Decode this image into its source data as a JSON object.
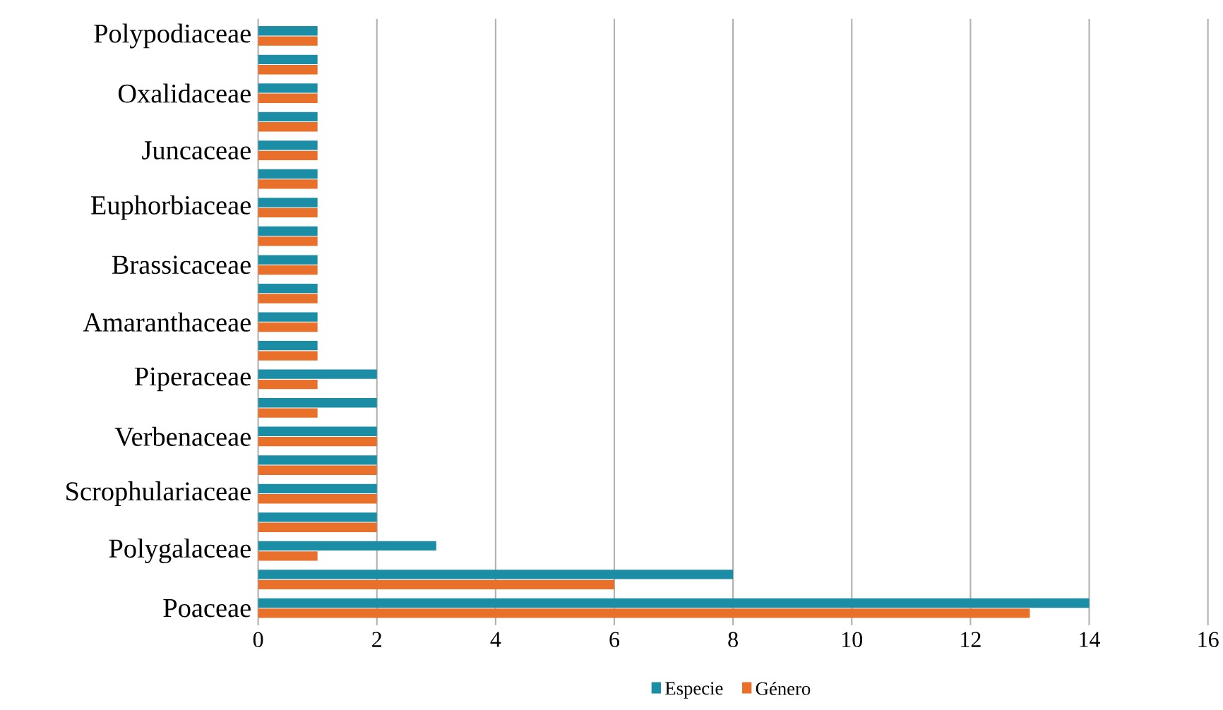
{
  "chart_data": {
    "type": "bar",
    "orientation": "horizontal",
    "categories": [
      "Polypodiaceae",
      null,
      "Oxalidaceae",
      null,
      "Juncaceae",
      null,
      "Euphorbiaceae",
      null,
      "Brassicaceae",
      null,
      "Amaranthaceae",
      null,
      "Piperaceae",
      null,
      "Verbenaceae",
      null,
      "Scrophulariaceae",
      null,
      "Polygalaceae",
      null,
      "Poaceae"
    ],
    "series": [
      {
        "name": "Especie",
        "color": "#1b8ea6",
        "values": [
          1,
          1,
          1,
          1,
          1,
          1,
          1,
          1,
          1,
          1,
          1,
          1,
          2,
          2,
          2,
          2,
          2,
          2,
          3,
          8,
          14
        ]
      },
      {
        "name": "Género",
        "color": "#e8702a",
        "values": [
          1,
          1,
          1,
          1,
          1,
          1,
          1,
          1,
          1,
          1,
          1,
          1,
          1,
          1,
          2,
          2,
          2,
          2,
          1,
          6,
          13
        ]
      }
    ],
    "xlim": [
      0,
      16
    ],
    "xticks": [
      0,
      2,
      4,
      6,
      8,
      10,
      12,
      14,
      16
    ],
    "grid": "x",
    "legend": "bottom"
  }
}
